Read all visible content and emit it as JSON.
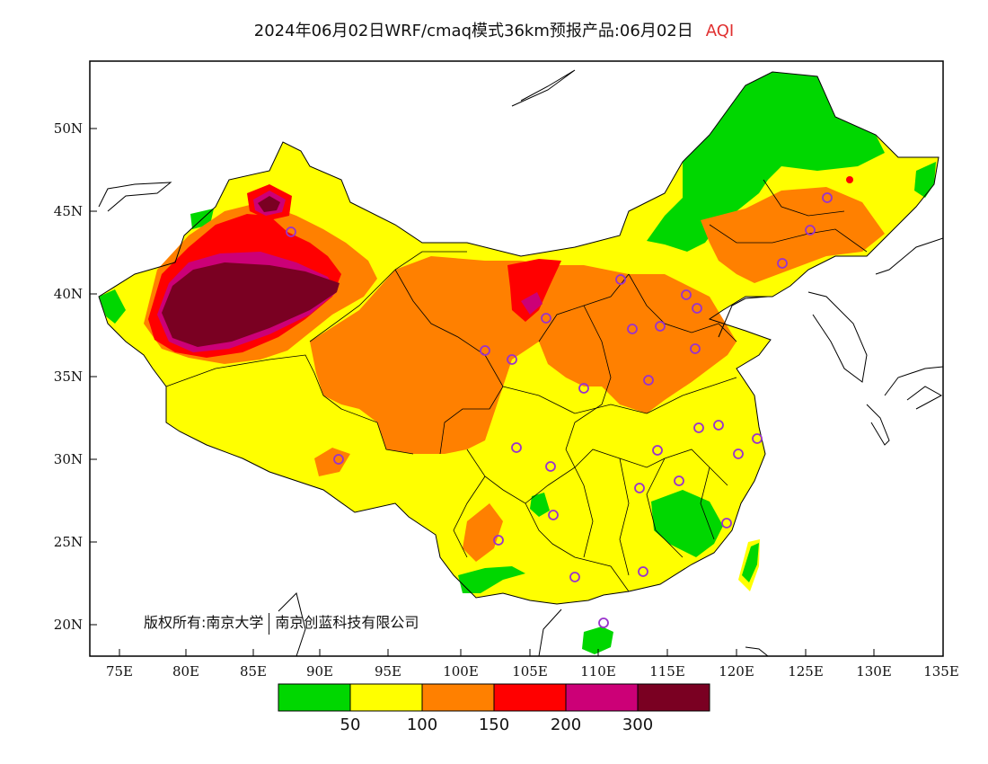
{
  "title": {
    "main": "2024年06月02日WRF/cmaq模式36km预报产品:06月02日",
    "product": "AQI"
  },
  "copyright": {
    "owner": "版权所有:南京大学",
    "company": "南京创蓝科技有限公司"
  },
  "axes": {
    "lat_labels": [
      "50N",
      "45N",
      "40N",
      "35N",
      "30N",
      "25N",
      "20N"
    ],
    "lon_labels": [
      "75E",
      "80E",
      "85E",
      "90E",
      "95E",
      "100E",
      "105E",
      "110E",
      "115E",
      "120E",
      "125E",
      "130E",
      "135E"
    ]
  },
  "legend": {
    "colors": [
      "#00d700",
      "#ffff00",
      "#ff8000",
      "#ff0000",
      "#cc0077",
      "#7a0022"
    ],
    "labels": [
      "50",
      "100",
      "150",
      "200",
      "300"
    ]
  },
  "colors": {
    "border": "#000000",
    "station_marker": "#9933cc"
  },
  "stations_note": "city markers shown as purple circles"
}
